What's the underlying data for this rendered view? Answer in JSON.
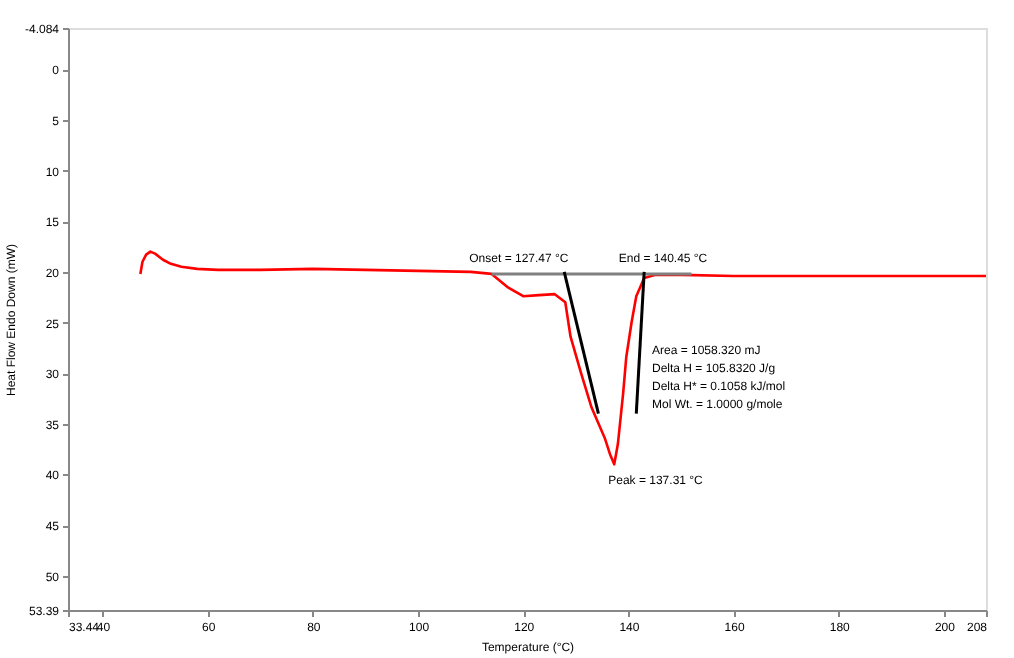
{
  "chart_data": {
    "type": "line",
    "xlabel": "Temperature (°C)",
    "ylabel": "Heat Flow Endo Down (mW)",
    "xlim": [
      33.44,
      208
    ],
    "xticks": [
      33.44,
      40,
      60,
      80,
      100,
      120,
      140,
      160,
      180,
      200,
      208
    ],
    "ylim": [
      53.39,
      -4.084
    ],
    "yticks": [
      -4.084,
      0,
      5,
      10,
      15,
      20,
      25,
      30,
      35,
      40,
      45,
      50,
      53.39
    ],
    "grid": false,
    "marker": "none",
    "line_style": "solid",
    "series": [
      {
        "color": "#ff0000",
        "x": [
          47.2,
          47.6,
          48.3,
          49.1,
          50,
          51.5,
          53,
          55,
          58,
          62,
          70,
          80,
          90,
          100,
          110,
          114,
          117,
          120,
          123,
          126,
          128,
          129,
          131,
          133,
          135.5,
          136.5,
          137.31,
          138,
          139,
          139.6,
          140.6,
          141.5,
          143,
          145,
          150,
          160,
          180,
          200,
          208
        ],
        "values": [
          20.2,
          19,
          18.3,
          18,
          18.2,
          18.8,
          19.2,
          19.5,
          19.7,
          19.8,
          19.8,
          19.7,
          19.8,
          19.9,
          20,
          20.2,
          21.5,
          22.4,
          22.3,
          22.2,
          23,
          26.4,
          30,
          33.4,
          36.4,
          38,
          39,
          37,
          32,
          28.4,
          25,
          22.4,
          20.6,
          20.3,
          20.3,
          20.4,
          20.4,
          20.4,
          20.4
        ]
      },
      {
        "color": "#808080",
        "x": [
          114,
          152
        ],
        "values": [
          20.2,
          20.2
        ]
      },
      {
        "color": "#000000",
        "x": [
          127.8,
          134.3
        ],
        "values": [
          20,
          34
        ]
      },
      {
        "color": "#000000",
        "x": [
          141.5,
          143
        ],
        "values": [
          34,
          20
        ]
      }
    ],
    "annotations": [
      {
        "text": "Onset = 127.47 °C",
        "x": 127.47,
        "y": 20.2
      },
      {
        "text": "End = 140.45 °C",
        "x": 140.45,
        "y": 20.2
      },
      {
        "text": "Peak = 137.31 °C",
        "x": 137.31,
        "y": 39
      },
      "Area = 1058.320 mJ",
      "Delta H = 105.8320 J/g",
      "Delta H* = 0.1058 kJ/mol",
      "Mol Wt. = 1.0000 g/mole"
    ]
  }
}
